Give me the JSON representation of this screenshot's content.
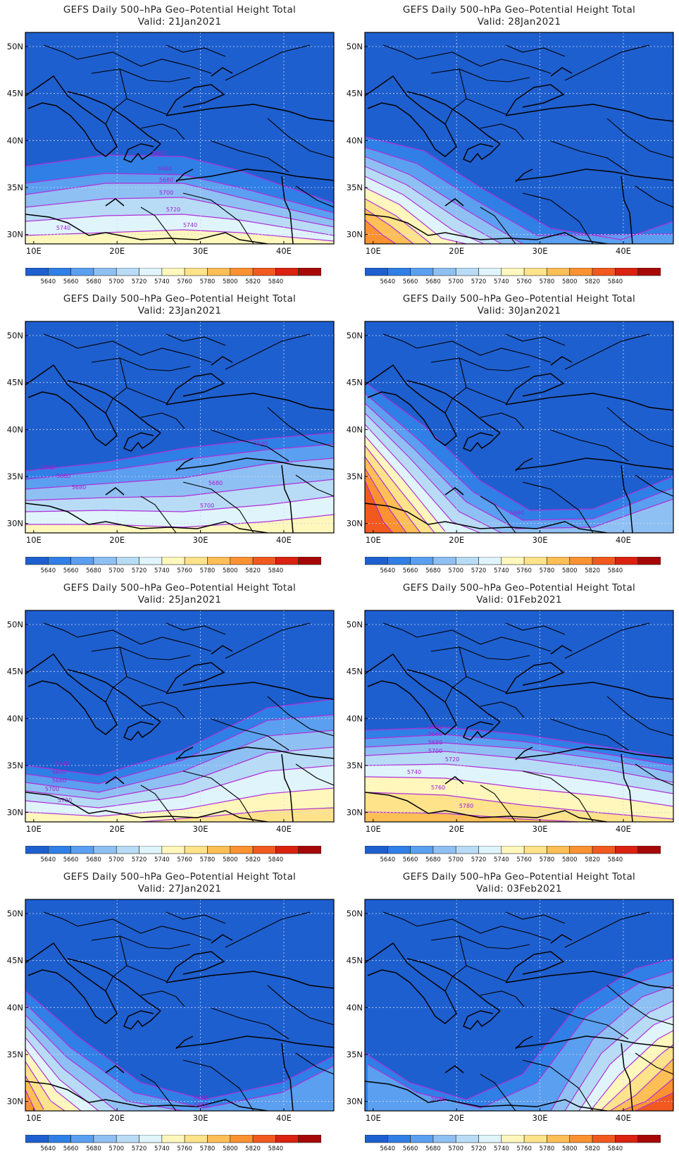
{
  "figure": {
    "title_text": "GEFS Daily 500–hPa Geo–Potential Height Total",
    "lat_ticks": [
      "50N",
      "45N",
      "40N",
      "35N",
      "30N"
    ],
    "lon_ticks": [
      "10E",
      "20E",
      "30E",
      "40E"
    ],
    "colorbar_labels": [
      "5640",
      "5660",
      "5680",
      "5700",
      "5720",
      "5740",
      "5760",
      "5780",
      "5800",
      "5820",
      "5840"
    ],
    "colorbar_colors": [
      "#1e5fcf",
      "#2f7fe6",
      "#5b9ff0",
      "#8fc0f3",
      "#b8dcf6",
      "#e0f4fb",
      "#fff7bc",
      "#fee38b",
      "#fdbf56",
      "#fb9231",
      "#f1591e",
      "#d9220f",
      "#a60808"
    ],
    "contour_color": "#b030d8",
    "panels": [
      {
        "valid": "Valid:  21Jan2021",
        "contour_labels": [
          "5640",
          "5660",
          "5680",
          "5700",
          "5720",
          "5740",
          "5740"
        ]
      },
      {
        "valid": "Valid:  28Jan2021",
        "contour_labels": []
      },
      {
        "valid": "Valid:  23Jan2021",
        "contour_labels": [
          "5640",
          "5640",
          "5660",
          "5680",
          "5680",
          "5700"
        ]
      },
      {
        "valid": "Valid:  30Jan2021",
        "contour_labels": [
          "5660"
        ]
      },
      {
        "valid": "Valid:  25Jan2021",
        "contour_labels": [
          "5640",
          "5660",
          "5680",
          "5700",
          "5720"
        ]
      },
      {
        "valid": "Valid:  01Feb2021",
        "contour_labels": [
          "5640",
          "5660",
          "5680",
          "5700",
          "5720",
          "5740",
          "5760",
          "5780"
        ]
      },
      {
        "valid": "Valid:  27Jan2021",
        "contour_labels": [
          "5640",
          "5660"
        ]
      },
      {
        "valid": "Valid:  03Feb2021",
        "contour_labels": [
          "5640"
        ]
      }
    ]
  }
}
